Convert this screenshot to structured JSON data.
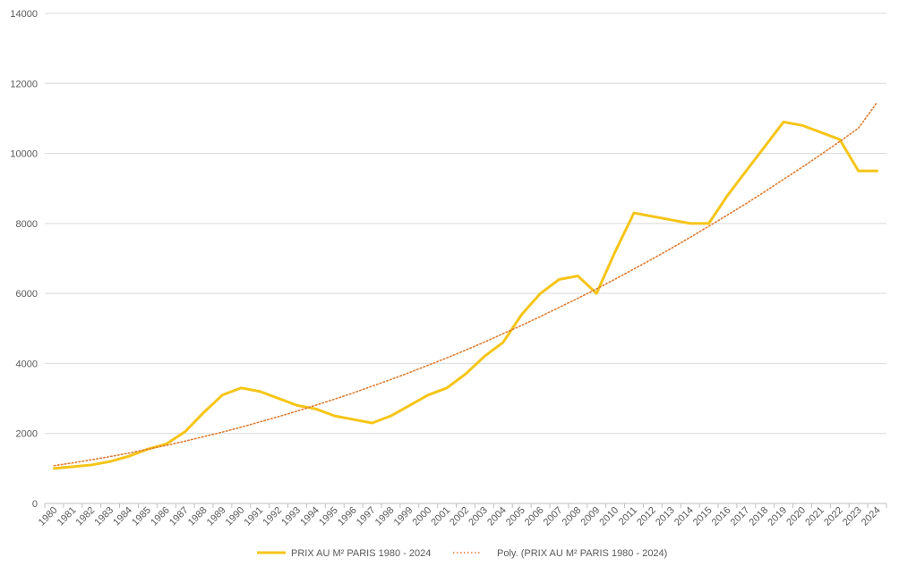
{
  "chart_data": {
    "type": "line",
    "title": "",
    "xlabel": "",
    "ylabel": "",
    "ylim": [
      0,
      14000
    ],
    "yticks": [
      0,
      2000,
      4000,
      6000,
      8000,
      10000,
      12000,
      14000
    ],
    "grid": true,
    "legend_position": "bottom",
    "categories": [
      "1980",
      "1981",
      "1982",
      "1983",
      "1984",
      "1985",
      "1986",
      "1987",
      "1988",
      "1989",
      "1990",
      "1991",
      "1992",
      "1993",
      "1994",
      "1995",
      "1996",
      "1997",
      "1998",
      "1999",
      "2000",
      "2001",
      "2002",
      "2003",
      "2004",
      "2005",
      "2006",
      "2007",
      "2008",
      "2009",
      "2010",
      "2011",
      "2012",
      "2013",
      "2014",
      "2015",
      "2016",
      "2017",
      "2018",
      "2019",
      "2020",
      "2021",
      "2022",
      "2023",
      "2024"
    ],
    "series": [
      {
        "name": "PRIX AU M² PARIS 1980 - 2024",
        "color": "#F5C518",
        "style": "solid",
        "values": [
          1000,
          1050,
          1100,
          1200,
          1350,
          1550,
          1700,
          2050,
          2600,
          3100,
          3300,
          3200,
          3000,
          2800,
          2700,
          2500,
          2400,
          2300,
          2500,
          2800,
          3100,
          3300,
          3700,
          4200,
          4600,
          5400,
          6000,
          6400,
          6500,
          6000,
          7200,
          8300,
          8200,
          8100,
          8000,
          8000,
          8800,
          9500,
          10200,
          10900,
          10800,
          10600,
          10400,
          9500,
          9500
        ]
      },
      {
        "name": "Poly. (PRIX AU M² PARIS 1980 - 2024)",
        "color": "#E07B30",
        "style": "dotted",
        "values": [
          1080,
          1160,
          1250,
          1340,
          1440,
          1550,
          1660,
          1780,
          1910,
          2040,
          2180,
          2330,
          2480,
          2640,
          2810,
          2980,
          3160,
          3350,
          3540,
          3740,
          3950,
          4160,
          4380,
          4610,
          4850,
          5090,
          5340,
          5600,
          5860,
          6130,
          6410,
          6700,
          6990,
          7290,
          7600,
          7920,
          8240,
          8570,
          8910,
          9260,
          9610,
          9970,
          10340,
          10720,
          11460
        ]
      }
    ]
  }
}
